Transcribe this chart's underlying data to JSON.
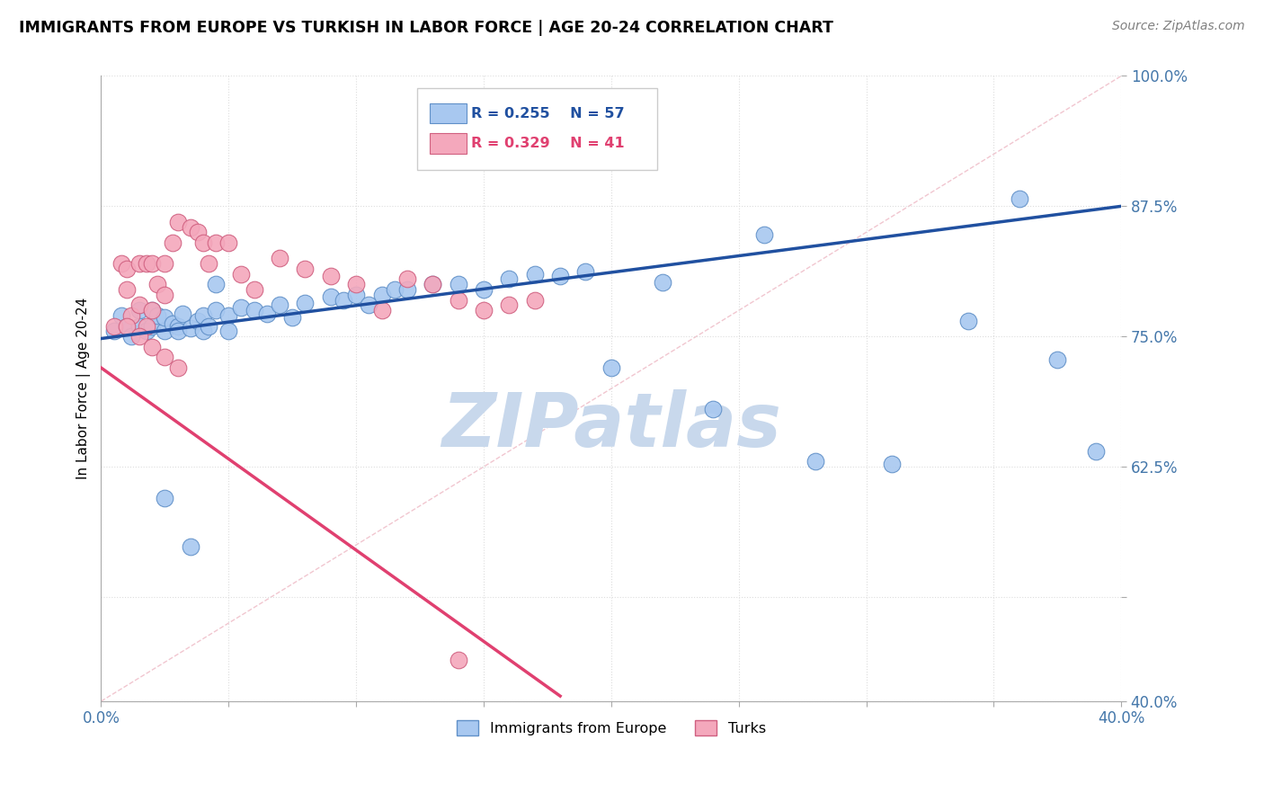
{
  "title": "IMMIGRANTS FROM EUROPE VS TURKISH IN LABOR FORCE | AGE 20-24 CORRELATION CHART",
  "source_text": "Source: ZipAtlas.com",
  "ylabel": "In Labor Force | Age 20-24",
  "xlim": [
    0.0,
    0.4
  ],
  "ylim": [
    0.4,
    1.0
  ],
  "xticks": [
    0.0,
    0.05,
    0.1,
    0.15,
    0.2,
    0.25,
    0.3,
    0.35,
    0.4
  ],
  "xticklabels": [
    "0.0%",
    "",
    "",
    "",
    "",
    "",
    "",
    "",
    "40.0%"
  ],
  "yticks": [
    0.4,
    0.5,
    0.625,
    0.75,
    0.875,
    1.0
  ],
  "yticklabels": [
    "40.0%",
    "",
    "62.5%",
    "75.0%",
    "87.5%",
    "100.0%"
  ],
  "legend_r1": "R = 0.255",
  "legend_n1": "N = 57",
  "legend_r2": "R = 0.329",
  "legend_n2": "N = 41",
  "legend_label1": "Immigrants from Europe",
  "legend_label2": "Turks",
  "blue_color": "#A8C8F0",
  "pink_color": "#F4A8BC",
  "blue_edge": "#6090C8",
  "pink_edge": "#D06080",
  "blue_line_color": "#2050A0",
  "pink_line_color": "#E04070",
  "grid_color": "#DDDDDD",
  "watermark": "ZIPatlas",
  "watermark_color": "#C8D8EC",
  "blue_scatter_x": [
    0.005,
    0.008,
    0.01,
    0.012,
    0.015,
    0.015,
    0.018,
    0.02,
    0.02,
    0.022,
    0.025,
    0.025,
    0.028,
    0.03,
    0.03,
    0.032,
    0.035,
    0.038,
    0.04,
    0.04,
    0.042,
    0.045,
    0.05,
    0.05,
    0.055,
    0.06,
    0.065,
    0.07,
    0.075,
    0.08,
    0.09,
    0.095,
    0.1,
    0.105,
    0.11,
    0.115,
    0.12,
    0.13,
    0.14,
    0.15,
    0.16,
    0.17,
    0.18,
    0.19,
    0.2,
    0.22,
    0.24,
    0.26,
    0.28,
    0.31,
    0.34,
    0.36,
    0.375,
    0.39,
    0.025,
    0.035,
    0.045
  ],
  "blue_scatter_y": [
    0.755,
    0.77,
    0.76,
    0.75,
    0.775,
    0.76,
    0.755,
    0.76,
    0.775,
    0.77,
    0.755,
    0.768,
    0.762,
    0.76,
    0.755,
    0.772,
    0.758,
    0.765,
    0.77,
    0.755,
    0.76,
    0.775,
    0.77,
    0.755,
    0.778,
    0.775,
    0.772,
    0.78,
    0.768,
    0.782,
    0.788,
    0.785,
    0.79,
    0.78,
    0.79,
    0.795,
    0.795,
    0.8,
    0.8,
    0.795,
    0.805,
    0.81,
    0.808,
    0.812,
    0.72,
    0.802,
    0.68,
    0.848,
    0.63,
    0.628,
    0.765,
    0.882,
    0.728,
    0.64,
    0.595,
    0.548,
    0.8
  ],
  "pink_scatter_x": [
    0.005,
    0.008,
    0.01,
    0.01,
    0.012,
    0.015,
    0.015,
    0.018,
    0.018,
    0.02,
    0.02,
    0.022,
    0.025,
    0.025,
    0.028,
    0.03,
    0.035,
    0.038,
    0.04,
    0.042,
    0.045,
    0.05,
    0.055,
    0.06,
    0.07,
    0.08,
    0.09,
    0.1,
    0.11,
    0.12,
    0.13,
    0.14,
    0.15,
    0.16,
    0.17,
    0.01,
    0.015,
    0.02,
    0.025,
    0.03,
    0.14
  ],
  "pink_scatter_y": [
    0.76,
    0.82,
    0.815,
    0.795,
    0.77,
    0.82,
    0.78,
    0.76,
    0.82,
    0.775,
    0.82,
    0.8,
    0.82,
    0.79,
    0.84,
    0.86,
    0.855,
    0.85,
    0.84,
    0.82,
    0.84,
    0.84,
    0.81,
    0.795,
    0.825,
    0.815,
    0.808,
    0.8,
    0.775,
    0.805,
    0.8,
    0.785,
    0.775,
    0.78,
    0.785,
    0.76,
    0.75,
    0.74,
    0.73,
    0.72,
    0.44
  ],
  "blue_trend_x": [
    0.0,
    0.4
  ],
  "blue_trend_y": [
    0.748,
    0.875
  ],
  "pink_trend_x": [
    0.0,
    0.18
  ],
  "pink_trend_y": [
    0.72,
    0.405
  ],
  "ref_line_x": [
    0.0,
    0.4
  ],
  "ref_line_y": [
    0.4,
    1.0
  ]
}
